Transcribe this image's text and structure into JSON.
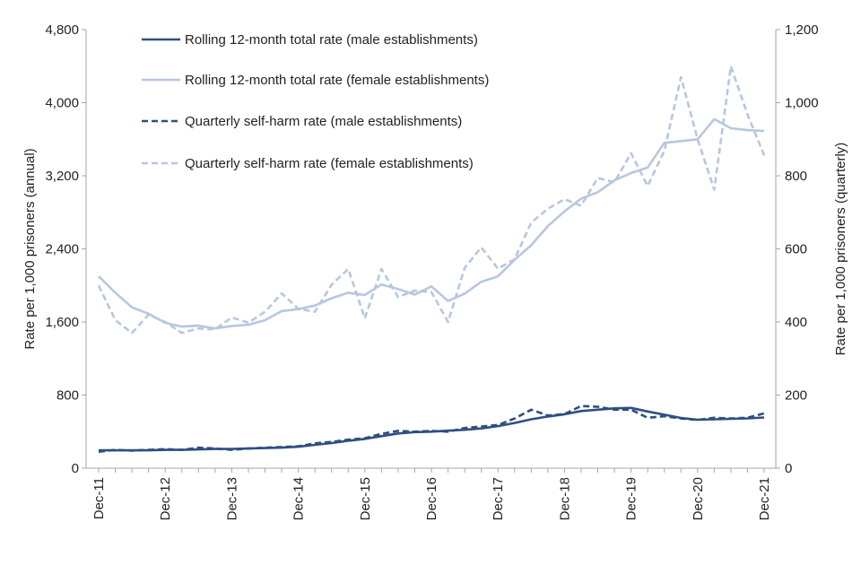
{
  "chart_data": {
    "type": "line",
    "title": "",
    "x_tick_labels": [
      "Dec-11",
      "Dec-12",
      "Dec-13",
      "Dec-14",
      "Dec-15",
      "Dec-16",
      "Dec-17",
      "Dec-18",
      "Dec-19",
      "Dec-20",
      "Dec-21"
    ],
    "y_left": {
      "label": "Rate per 1,000 prisoners (annual)",
      "range": [
        0,
        4800
      ],
      "ticks": [
        {
          "value": 0,
          "label": "0"
        },
        {
          "value": 800,
          "label": "800"
        },
        {
          "value": 1600,
          "label": "1,600"
        },
        {
          "value": 2400,
          "label": "2,400"
        },
        {
          "value": 3200,
          "label": "3,200"
        },
        {
          "value": 4000,
          "label": "4,000"
        },
        {
          "value": 4800,
          "label": "4,800"
        }
      ]
    },
    "y_right": {
      "label": "Rate per 1,000 prisoners (quarterly)",
      "range": [
        0,
        1200
      ],
      "ticks": [
        {
          "value": 0,
          "label": "0"
        },
        {
          "value": 200,
          "label": "200"
        },
        {
          "value": 400,
          "label": "400"
        },
        {
          "value": 600,
          "label": "600"
        },
        {
          "value": 800,
          "label": "800"
        },
        {
          "value": 1000,
          "label": "1,000"
        },
        {
          "value": 1200,
          "label": "1,200"
        }
      ]
    },
    "grid": false,
    "legend_position": "top-left",
    "x": [
      "Dec-11",
      "Mar-12",
      "Jun-12",
      "Sep-12",
      "Dec-12",
      "Mar-13",
      "Jun-13",
      "Sep-13",
      "Dec-13",
      "Mar-14",
      "Jun-14",
      "Sep-14",
      "Dec-14",
      "Mar-15",
      "Jun-15",
      "Sep-15",
      "Dec-15",
      "Mar-16",
      "Jun-16",
      "Sep-16",
      "Dec-16",
      "Mar-17",
      "Jun-17",
      "Sep-17",
      "Dec-17",
      "Mar-18",
      "Jun-18",
      "Sep-18",
      "Dec-18",
      "Mar-19",
      "Jun-19",
      "Sep-19",
      "Dec-19",
      "Mar-20",
      "Jun-20",
      "Sep-20",
      "Dec-20",
      "Mar-21",
      "Jun-21",
      "Sep-21",
      "Dec-21"
    ],
    "series": [
      {
        "name": "Rolling 12-month total rate (male establishments)",
        "axis": "left",
        "style": "solid",
        "color": "#2f4f80",
        "values": [
          195,
          195,
          195,
          195,
          200,
          200,
          205,
          210,
          210,
          215,
          220,
          225,
          235,
          255,
          275,
          300,
          320,
          350,
          380,
          395,
          400,
          410,
          420,
          435,
          460,
          495,
          535,
          565,
          590,
          625,
          640,
          655,
          660,
          620,
          585,
          550,
          530,
          535,
          540,
          545,
          555
        ]
      },
      {
        "name": "Rolling 12-month total rate (female establishments)",
        "axis": "left",
        "style": "solid",
        "color": "#b7c7df",
        "values": [
          2100,
          1920,
          1760,
          1690,
          1590,
          1550,
          1560,
          1530,
          1555,
          1570,
          1620,
          1720,
          1740,
          1780,
          1860,
          1920,
          1895,
          2010,
          1960,
          1900,
          1990,
          1830,
          1910,
          2040,
          2100,
          2280,
          2440,
          2650,
          2810,
          2950,
          3020,
          3150,
          3230,
          3290,
          3560,
          3580,
          3600,
          3820,
          3720,
          3700,
          3690
        ]
      },
      {
        "name": "Quarterly self-harm rate (male establishments)",
        "axis": "right",
        "style": "dashed",
        "color": "#2f4f80",
        "values": [
          45,
          50,
          48,
          50,
          52,
          50,
          56,
          54,
          50,
          54,
          56,
          58,
          60,
          68,
          72,
          78,
          82,
          94,
          102,
          100,
          102,
          100,
          110,
          114,
          118,
          136,
          160,
          144,
          148,
          170,
          168,
          160,
          160,
          138,
          142,
          136,
          132,
          138,
          136,
          138,
          150
        ]
      },
      {
        "name": "Quarterly self-harm rate (female establishments)",
        "axis": "right",
        "style": "dashed",
        "color": "#b7c7df",
        "values": [
          500,
          405,
          370,
          420,
          400,
          370,
          382,
          380,
          412,
          398,
          428,
          478,
          436,
          428,
          502,
          545,
          410,
          545,
          468,
          486,
          482,
          400,
          548,
          604,
          546,
          572,
          672,
          710,
          736,
          718,
          794,
          782,
          862,
          772,
          868,
          1070,
          900,
          762,
          1100,
          968,
          856
        ]
      }
    ]
  }
}
